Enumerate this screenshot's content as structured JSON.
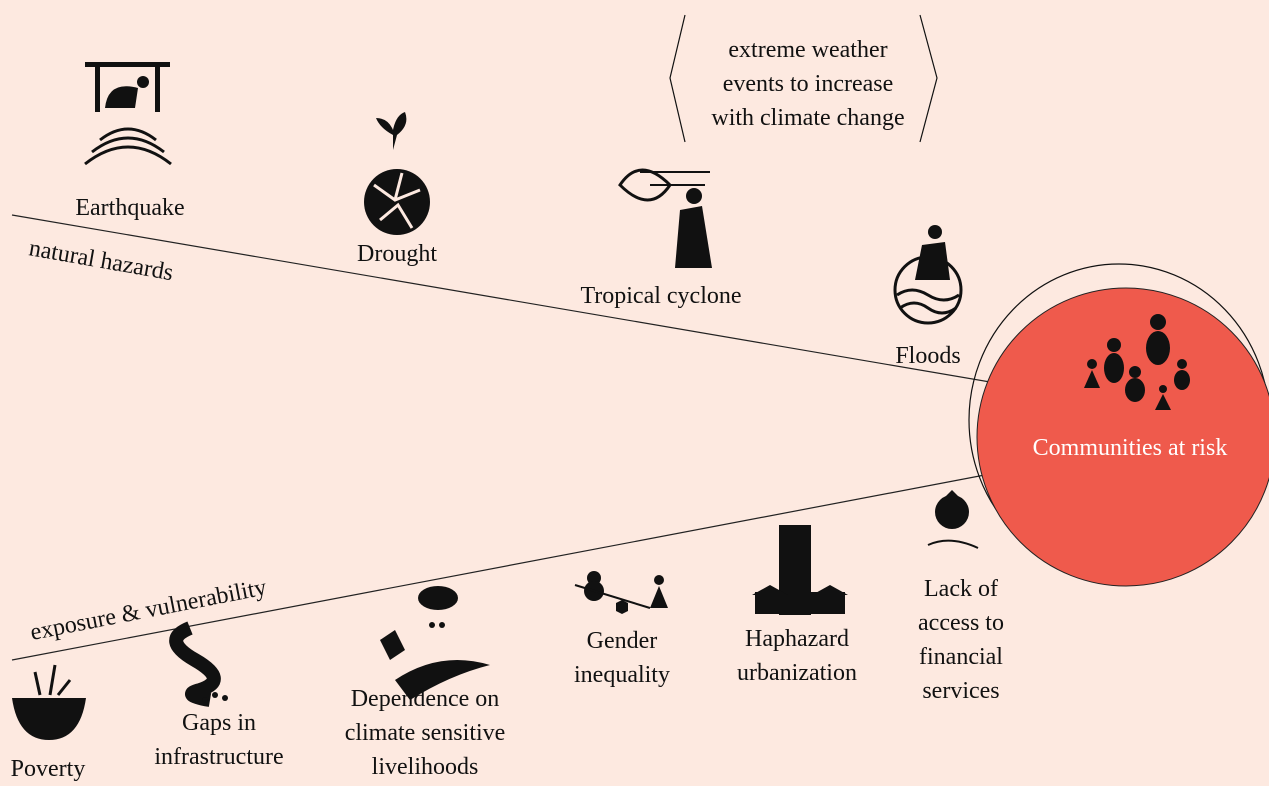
{
  "bracket_note": [
    "extreme weather",
    "events to increase",
    "with climate change"
  ],
  "hazards": {
    "label": "natural hazards",
    "nodes": [
      {
        "label": [
          "Earthquake"
        ]
      },
      {
        "label": [
          "Drought"
        ]
      },
      {
        "label": [
          "Tropical cyclone"
        ]
      },
      {
        "label": [
          "Floods"
        ]
      }
    ]
  },
  "vulnerability": {
    "label": "exposure & vulnerability",
    "nodes": [
      {
        "label": [
          "Poverty"
        ]
      },
      {
        "label": [
          "Gaps in",
          "infrastructure"
        ]
      },
      {
        "label": [
          "Dependence on",
          "climate sensitive",
          "livelihoods"
        ]
      },
      {
        "label": [
          "Gender",
          "inequality"
        ]
      },
      {
        "label": [
          "Haphazard",
          "urbanization"
        ]
      },
      {
        "label": [
          "Lack of",
          "access to",
          "financial",
          "services"
        ]
      }
    ]
  },
  "center": {
    "label": "Communities at risk"
  }
}
